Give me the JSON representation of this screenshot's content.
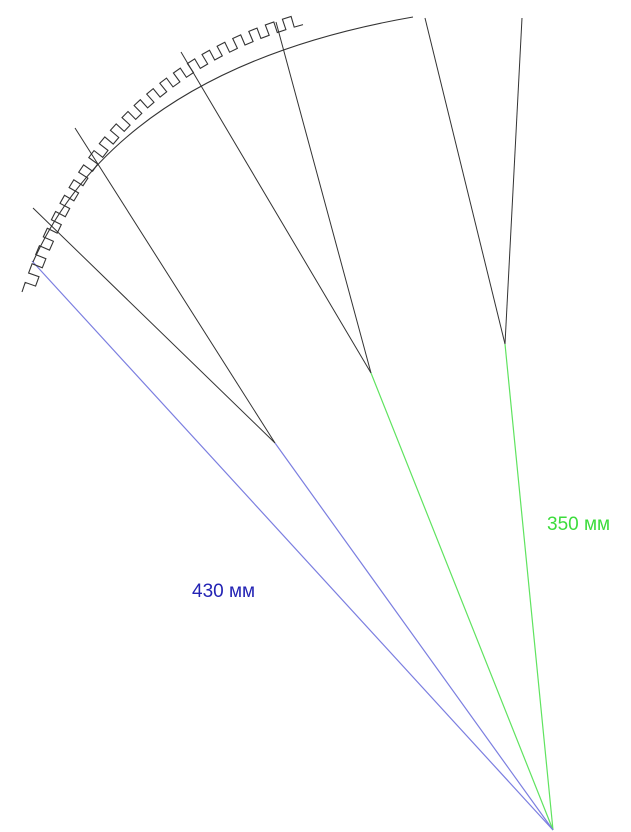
{
  "labels": {
    "blue_dimension": "430 мм",
    "green_dimension": "350 мм"
  },
  "colors": {
    "background": "#ffffff",
    "outline": "#333333",
    "blue": "#7b7ee0",
    "blue_text": "#2323b4",
    "green": "#5fe35f",
    "green_text": "#3cdc3c"
  }
}
